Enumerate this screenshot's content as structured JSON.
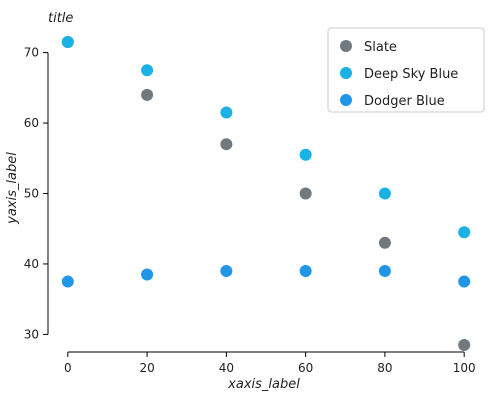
{
  "chart_data": {
    "type": "line",
    "title": "title",
    "xlabel": "xaxis_label",
    "ylabel": "yaxis_label",
    "x": [
      0,
      20,
      40,
      60,
      80,
      100
    ],
    "xlim": [
      -5,
      105
    ],
    "ylim": [
      27.5,
      72.5
    ],
    "xticks": [
      0,
      20,
      40,
      60,
      80,
      100
    ],
    "yticks": [
      30,
      40,
      50,
      60,
      70
    ],
    "xtick_labels": [
      "0",
      "20",
      "40",
      "60",
      "80",
      "100"
    ],
    "ytick_labels": [
      "30",
      "40",
      "50",
      "60",
      "70"
    ],
    "grid": false,
    "legend_position": "top-right",
    "series": [
      {
        "name": "Slate",
        "color": "#717880",
        "values": [
          71.5,
          64.0,
          57.0,
          50.0,
          43.0,
          28.5
        ]
      },
      {
        "name": "Deep Sky Blue",
        "color": "#1bb1e5",
        "values": [
          71.5,
          67.5,
          61.5,
          55.5,
          50.0,
          44.5
        ]
      },
      {
        "name": "Dodger Blue",
        "color": "#2196e9",
        "values": [
          37.5,
          38.5,
          39.0,
          39.0,
          39.0,
          37.5
        ]
      }
    ]
  }
}
